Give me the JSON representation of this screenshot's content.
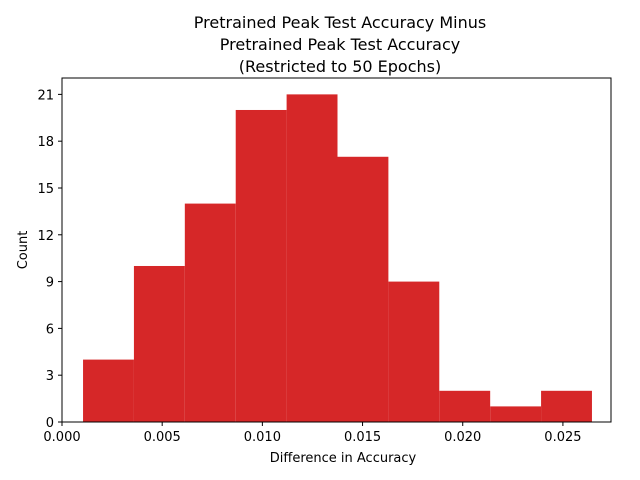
{
  "chart_data": {
    "type": "bar",
    "title_lines": [
      "Pretrained Peak Test Accuracy Minus",
      "Pretrained Peak Test Accuracy",
      "(Restricted to 50 Epochs)"
    ],
    "xlabel": "Difference in Accuracy",
    "ylabel": "Count",
    "bin_edges": [
      0.00105,
      0.00359,
      0.00613,
      0.00867,
      0.01121,
      0.01375,
      0.01629,
      0.01883,
      0.02137,
      0.02391,
      0.02645
    ],
    "values": [
      4,
      10,
      14,
      20,
      21,
      17,
      9,
      2,
      1,
      2
    ],
    "xlim": [
      0.0,
      0.0274
    ],
    "ylim": [
      0,
      22.05
    ],
    "xticks": [
      0.0,
      0.005,
      0.01,
      0.015,
      0.02,
      0.025
    ],
    "xtick_labels": [
      "0.000",
      "0.005",
      "0.010",
      "0.015",
      "0.020",
      "0.025"
    ],
    "yticks": [
      0,
      3,
      6,
      9,
      12,
      15,
      18,
      21
    ],
    "ytick_labels": [
      "0",
      "3",
      "6",
      "9",
      "12",
      "15",
      "18",
      "21"
    ],
    "bar_color": "#d62728",
    "grid": false,
    "legend": "none"
  }
}
